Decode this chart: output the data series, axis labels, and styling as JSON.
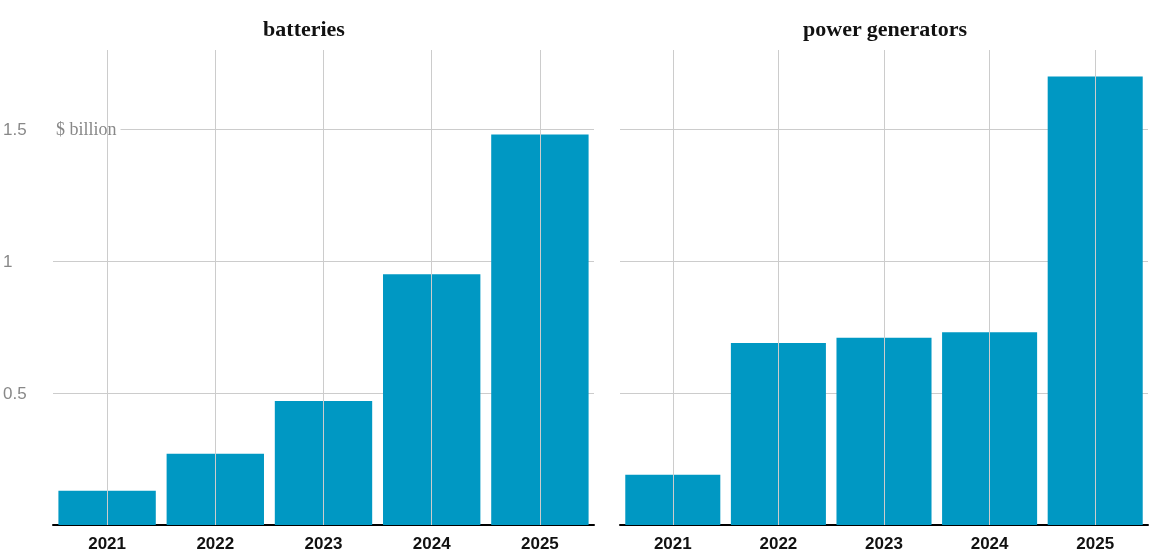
{
  "chart_data": [
    {
      "type": "bar",
      "title": "batteries",
      "ylabel": "$ billion",
      "categories": [
        "2021",
        "2022",
        "2023",
        "2024",
        "2025"
      ],
      "values": [
        0.13,
        0.27,
        0.47,
        0.95,
        1.48
      ],
      "color": "#0098c3",
      "ylim": [
        0,
        1.8
      ],
      "yticks": [
        0.5,
        1,
        1.5
      ],
      "grid": true
    },
    {
      "type": "bar",
      "title": "power generators",
      "categories": [
        "2021",
        "2022",
        "2023",
        "2024",
        "2025"
      ],
      "values": [
        0.19,
        0.69,
        0.71,
        0.73,
        1.7
      ],
      "color": "#0098c3",
      "ylim": [
        0,
        1.8
      ],
      "yticks": [
        0.5,
        1,
        1.5
      ],
      "grid": true,
      "tick_labels": "x"
    }
  ]
}
